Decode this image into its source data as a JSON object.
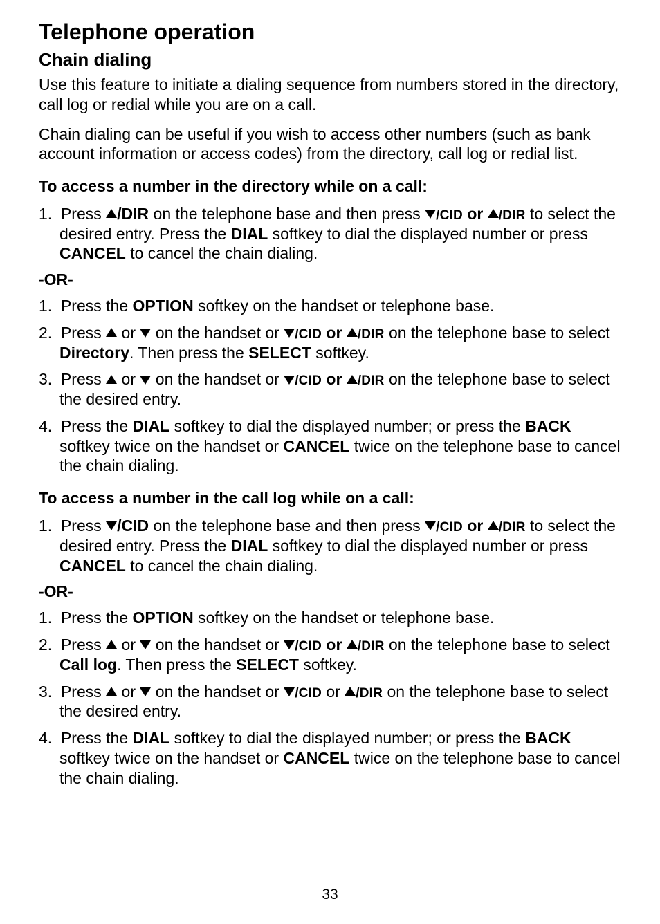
{
  "page": {
    "title": "Telephone operation",
    "section": "Chain dialing",
    "intro1": "Use this feature to initiate a dialing sequence from numbers stored in the directory, call log or redial while you are on a call.",
    "intro2": "Chain dialing can be useful if you wish to access other numbers (such as bank account information or access codes) from the directory, call log or redial list.",
    "subhead1": "To access a number in the directory while on a call:",
    "step_a1_pre": "Press ",
    "dir_key": "/DIR",
    "step_a1_mid": " on the telephone base and then press ",
    "cid_small": "/CID",
    "or_word": " or ",
    "dir_small": "/DIR",
    "step_a1_post": " to select the desired entry. Press the ",
    "dial_key": "DIAL",
    "step_a1_post2": " softkey to dial the displayed number or press ",
    "cancel_key": "CANCEL",
    "step_a1_end": " to cancel the chain dialing.",
    "or": "-OR-",
    "step_b1_pre": "Press the ",
    "option_key": "OPTION",
    "step_b1_post": " softkey on the handset or telephone base.",
    "step_b2_pre": "Press ",
    "on_handset": " on the handset or ",
    "on_base_to": " on the telephone base to select ",
    "directory": "Directory",
    "then_press": ". Then press the ",
    "select_key": "SELECT",
    "softkey_period": " softkey.",
    "step_b3_post": " on the telephone base to select the desired entry.",
    "step_b4_pre": "Press the ",
    "step_b4_mid": " softkey to dial the displayed number; or press the ",
    "back_key": "BACK",
    "step_b4_mid2": " softkey twice on the handset or ",
    "step_b4_end": " twice on the telephone base to cancel the chain dialing.",
    "subhead2": "To access a number in the call log while on a call:",
    "cid_big": "/CID",
    "calllog": "Call log",
    "or_plain": " or ",
    "pagenum": "33"
  }
}
